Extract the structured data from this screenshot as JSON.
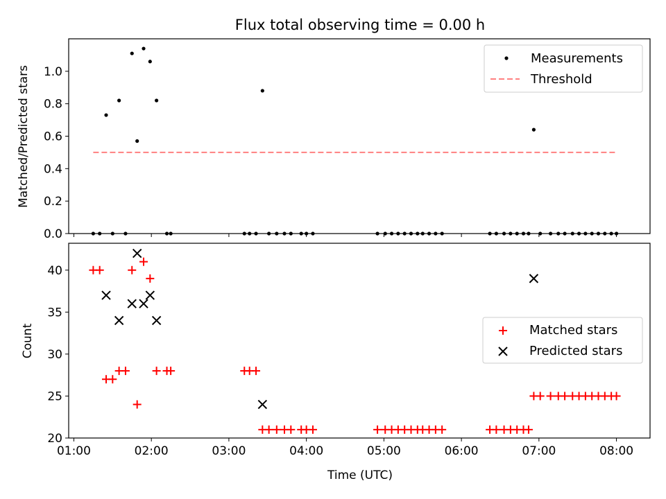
{
  "chart_data": [
    {
      "type": "scatter",
      "title": "Flux total observing time = 0.00 h",
      "xlabel": "",
      "ylabel": "Matched/Predicted stars",
      "xlim": [
        "00:56",
        "08:26"
      ],
      "ylim": [
        0,
        1.2
      ],
      "yticks": [
        0.0,
        0.2,
        0.4,
        0.6,
        0.8,
        1.0
      ],
      "ytick_labels": [
        "0.0",
        "0.2",
        "0.4",
        "0.6",
        "0.8",
        "1.0"
      ],
      "xticks": [
        "01:00",
        "02:00",
        "03:00",
        "04:00",
        "05:00",
        "06:00",
        "07:00",
        "08:00"
      ],
      "show_xtick_labels": false,
      "grid": false,
      "legend_position": "top-right",
      "series": [
        {
          "name": "Measurements",
          "kind": "scatter",
          "marker": "dot",
          "color": "#000000",
          "x": [
            "01:15",
            "01:20",
            "01:25",
            "01:30",
            "01:35",
            "01:40",
            "01:45",
            "01:49",
            "01:54",
            "01:59",
            "02:04",
            "02:12",
            "02:15",
            "03:12",
            "03:16",
            "03:21",
            "03:26",
            "03:31",
            "03:37",
            "03:43",
            "03:48",
            "03:56",
            "04:00",
            "04:05",
            "04:55",
            "05:01",
            "05:06",
            "05:11",
            "05:16",
            "05:21",
            "05:26",
            "05:30",
            "05:35",
            "05:40",
            "05:45",
            "06:22",
            "06:27",
            "06:33",
            "06:38",
            "06:43",
            "06:48",
            "06:52",
            "06:56",
            "07:01",
            "07:09",
            "07:15",
            "07:20",
            "07:26",
            "07:31",
            "07:36",
            "07:41",
            "07:46",
            "07:51",
            "07:56",
            "08:00"
          ],
          "y": [
            0,
            0,
            0.73,
            0,
            0.82,
            0,
            1.11,
            0.57,
            1.14,
            1.06,
            0.82,
            0,
            0,
            0,
            0,
            0,
            0.88,
            0,
            0,
            0,
            0,
            0,
            0,
            0,
            0,
            0,
            0,
            0,
            0,
            0,
            0,
            0,
            0,
            0,
            0,
            0,
            0,
            0,
            0,
            0,
            0,
            0,
            0.64,
            0,
            0,
            0,
            0,
            0,
            0,
            0,
            0,
            0,
            0,
            0,
            0
          ]
        },
        {
          "name": "Threshold",
          "kind": "line",
          "dash": "dashed",
          "color": "#ff8080",
          "x": [
            "01:15",
            "08:00"
          ],
          "y": [
            0.5,
            0.5
          ]
        }
      ]
    },
    {
      "type": "scatter",
      "title": "",
      "xlabel": "Time (UTC)",
      "ylabel": "Count",
      "xlim": [
        "00:56",
        "08:26"
      ],
      "ylim": [
        20,
        43.2
      ],
      "yticks": [
        20,
        25,
        30,
        35,
        40
      ],
      "ytick_labels": [
        "20",
        "25",
        "30",
        "35",
        "40"
      ],
      "xticks": [
        "01:00",
        "02:00",
        "03:00",
        "04:00",
        "05:00",
        "06:00",
        "07:00",
        "08:00"
      ],
      "xtick_labels": [
        "01:00",
        "02:00",
        "03:00",
        "04:00",
        "05:00",
        "06:00",
        "07:00",
        "08:00"
      ],
      "grid": false,
      "legend_position": "center-right",
      "series": [
        {
          "name": "Matched stars",
          "kind": "scatter",
          "marker": "plus",
          "color": "#ff0000",
          "x": [
            "01:15",
            "01:20",
            "01:25",
            "01:30",
            "01:35",
            "01:40",
            "01:45",
            "01:49",
            "01:54",
            "01:59",
            "02:04",
            "02:12",
            "02:15",
            "03:12",
            "03:16",
            "03:21",
            "03:26",
            "03:31",
            "03:37",
            "03:43",
            "03:48",
            "03:56",
            "04:00",
            "04:05",
            "04:55",
            "05:01",
            "05:06",
            "05:11",
            "05:16",
            "05:21",
            "05:26",
            "05:30",
            "05:35",
            "05:40",
            "05:45",
            "06:22",
            "06:27",
            "06:33",
            "06:38",
            "06:43",
            "06:48",
            "06:52",
            "06:56",
            "07:01",
            "07:09",
            "07:15",
            "07:20",
            "07:26",
            "07:31",
            "07:36",
            "07:41",
            "07:46",
            "07:51",
            "07:56",
            "08:00"
          ],
          "y": [
            40,
            40,
            27,
            27,
            28,
            28,
            40,
            24,
            41,
            39,
            28,
            28,
            28,
            28,
            28,
            28,
            21,
            21,
            21,
            21,
            21,
            21,
            21,
            21,
            21,
            21,
            21,
            21,
            21,
            21,
            21,
            21,
            21,
            21,
            21,
            21,
            21,
            21,
            21,
            21,
            21,
            21,
            25,
            25,
            25,
            25,
            25,
            25,
            25,
            25,
            25,
            25,
            25,
            25,
            25
          ]
        },
        {
          "name": "Predicted stars",
          "kind": "scatter",
          "marker": "x",
          "color": "#000000",
          "x": [
            "01:25",
            "01:35",
            "01:45",
            "01:49",
            "01:54",
            "01:59",
            "02:04",
            "03:26",
            "06:56"
          ],
          "y": [
            37,
            34,
            36,
            42,
            36,
            37,
            34,
            24,
            39
          ]
        }
      ]
    }
  ]
}
